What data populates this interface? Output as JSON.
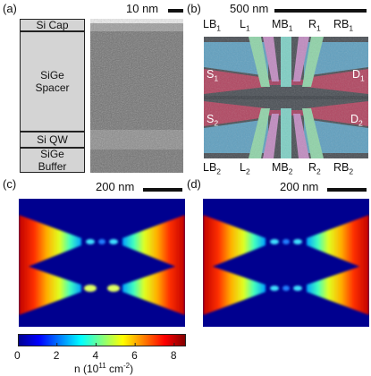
{
  "panels": {
    "a": {
      "label": "(a)",
      "scale": "10 nm",
      "layers": [
        {
          "name": "Si Cap"
        },
        {
          "name": "SiGe Spacer"
        },
        {
          "name": "Si QW"
        },
        {
          "name": "SiGe Buffer"
        }
      ]
    },
    "b": {
      "label": "(b)",
      "scale": "500 nm",
      "top_gates": [
        {
          "base": "LB",
          "sub": "1"
        },
        {
          "base": "L",
          "sub": "1"
        },
        {
          "base": "MB",
          "sub": "1"
        },
        {
          "base": "R",
          "sub": "1"
        },
        {
          "base": "RB",
          "sub": "1"
        }
      ],
      "bottom_gates": [
        {
          "base": "LB",
          "sub": "2"
        },
        {
          "base": "L",
          "sub": "2"
        },
        {
          "base": "MB",
          "sub": "2"
        },
        {
          "base": "R",
          "sub": "2"
        },
        {
          "base": "RB",
          "sub": "2"
        }
      ],
      "leads": [
        {
          "base": "S",
          "sub": "1"
        },
        {
          "base": "D",
          "sub": "1"
        },
        {
          "base": "S",
          "sub": "2"
        },
        {
          "base": "D",
          "sub": "2"
        }
      ]
    },
    "c": {
      "label": "(c)",
      "scale": "200 nm"
    },
    "d": {
      "label": "(d)",
      "scale": "200 nm"
    }
  },
  "colorbar": {
    "ticks": [
      "0",
      "2",
      "4",
      "6",
      "8"
    ],
    "range": [
      0,
      8.6
    ],
    "colormap": "jet",
    "title_main": "n (10",
    "title_exp1": "11",
    "title_mid": " cm",
    "title_exp2": "-2",
    "title_end": ")"
  },
  "colors": {
    "map_background": "#00008f",
    "sem_background": "#4a4f55",
    "gate_green": "#8fd3a8",
    "gate_teal": "#7ecfc4",
    "gate_pink": "#c08bc0",
    "lead_red": "#b04560",
    "mesa_blue": "#5f9fbf"
  }
}
